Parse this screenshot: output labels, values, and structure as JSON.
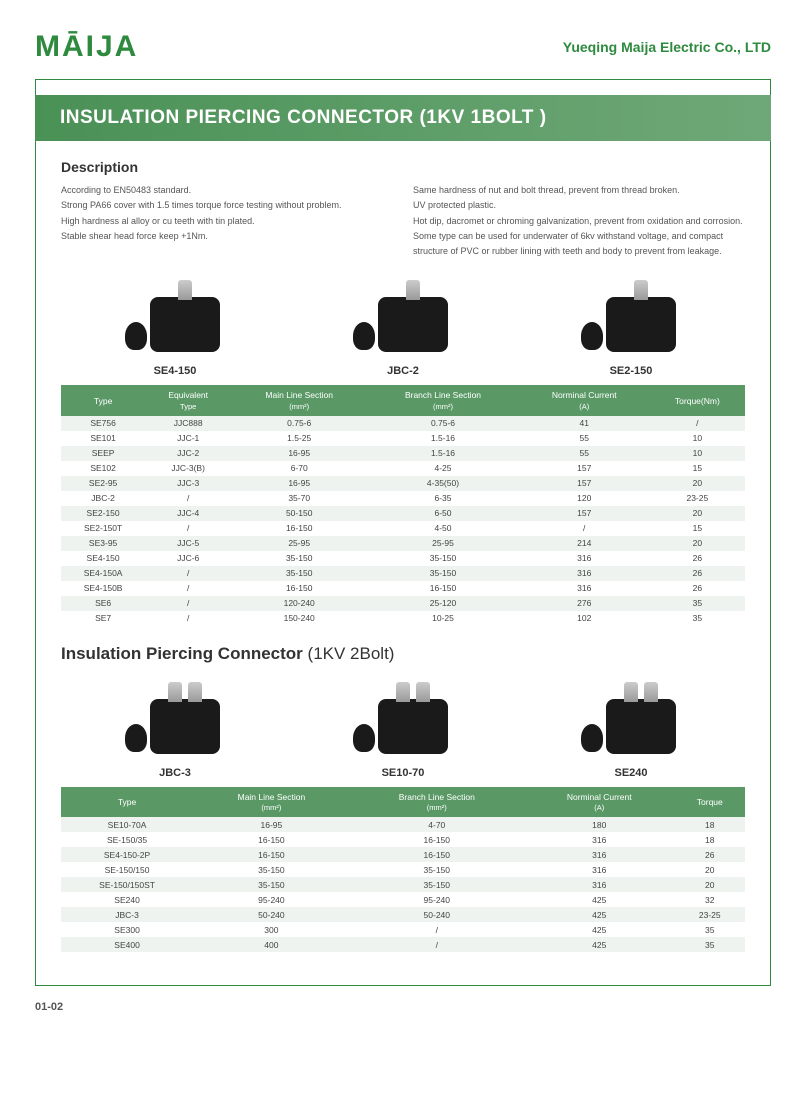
{
  "logo": "MĀIJA",
  "company": "Yueqing Maija Electric Co., LTD",
  "title1": "INSULATION PIERCING CONNECTOR (1KV 1BOLT )",
  "desc_heading": "Description",
  "desc_left": [
    "According to EN50483 standard.",
    "Strong PA66 cover with 1.5 times torque force testing without problem.",
    "High hardness al alloy or cu teeth with tin plated.",
    "Stable shear head force keep +1Nm."
  ],
  "desc_right": [
    "Same hardness of nut and bolt thread, prevent from thread broken.",
    "UV protected plastic.",
    "Hot dip, dacromet or chroming galvanization, prevent from oxidation and corrosion.",
    "Some type can be used for underwater of 6kv withstand voltage, and compact structure of PVC or rubber lining with teeth and body to prevent from leakage."
  ],
  "products1": [
    {
      "label": "SE4-150"
    },
    {
      "label": "JBC-2"
    },
    {
      "label": "SE2-150"
    }
  ],
  "table1_headers": [
    {
      "main": "Type",
      "sub": ""
    },
    {
      "main": "Equivalent",
      "sub": "Type"
    },
    {
      "main": "Main Line Section",
      "sub": "(mm²)"
    },
    {
      "main": "Branch Line Section",
      "sub": "(mm²)"
    },
    {
      "main": "Norminal Current",
      "sub": "(A)"
    },
    {
      "main": "Torque(Nm)",
      "sub": ""
    }
  ],
  "table1_rows": [
    [
      "SE756",
      "JJC888",
      "0.75-6",
      "0.75-6",
      "41",
      "/"
    ],
    [
      "SE101",
      "JJC-1",
      "1.5-25",
      "1.5-16",
      "55",
      "10"
    ],
    [
      "SEEP",
      "JJC-2",
      "16-95",
      "1.5-16",
      "55",
      "10"
    ],
    [
      "SE102",
      "JJC-3(B)",
      "6-70",
      "4-25",
      "157",
      "15"
    ],
    [
      "SE2-95",
      "JJC-3",
      "16-95",
      "4-35(50)",
      "157",
      "20"
    ],
    [
      "JBC-2",
      "/",
      "35-70",
      "6-35",
      "120",
      "23-25"
    ],
    [
      "SE2-150",
      "JJC-4",
      "50-150",
      "6-50",
      "157",
      "20"
    ],
    [
      "SE2-150T",
      "/",
      "16-150",
      "4-50",
      "/",
      "15"
    ],
    [
      "SE3-95",
      "JJC-5",
      "25-95",
      "25-95",
      "214",
      "20"
    ],
    [
      "SE4-150",
      "JJC-6",
      "35-150",
      "35-150",
      "316",
      "26"
    ],
    [
      "SE4-150A",
      "/",
      "35-150",
      "35-150",
      "316",
      "26"
    ],
    [
      "SE4-150B",
      "/",
      "16-150",
      "16-150",
      "316",
      "26"
    ],
    [
      "SE6",
      "/",
      "120-240",
      "25-120",
      "276",
      "35"
    ],
    [
      "SE7",
      "/",
      "150-240",
      "10-25",
      "102",
      "35"
    ]
  ],
  "title2_a": "Insulation Piercing Connector ",
  "title2_b": "(1KV 2Bolt)",
  "products2": [
    {
      "label": "JBC-3"
    },
    {
      "label": "SE10-70"
    },
    {
      "label": "SE240"
    }
  ],
  "table2_headers": [
    {
      "main": "Type",
      "sub": ""
    },
    {
      "main": "Main Line Section",
      "sub": "(mm²)"
    },
    {
      "main": "Branch Line Section",
      "sub": "(mm²)"
    },
    {
      "main": "Norminal Current",
      "sub": "(A)"
    },
    {
      "main": "Torque",
      "sub": ""
    }
  ],
  "table2_rows": [
    [
      "SE10-70A",
      "16-95",
      "4-70",
      "180",
      "18"
    ],
    [
      "SE-150/35",
      "16-150",
      "16-150",
      "316",
      "18"
    ],
    [
      "SE4-150-2P",
      "16-150",
      "16-150",
      "316",
      "26"
    ],
    [
      "SE-150/150",
      "35-150",
      "35-150",
      "316",
      "20"
    ],
    [
      "SE-150/150ST",
      "35-150",
      "35-150",
      "316",
      "20"
    ],
    [
      "SE240",
      "95-240",
      "95-240",
      "425",
      "32"
    ],
    [
      "JBC-3",
      "50-240",
      "50-240",
      "425",
      "23-25"
    ],
    [
      "SE300",
      "300",
      "/",
      "425",
      "35"
    ],
    [
      "SE400",
      "400",
      "/",
      "425",
      "35"
    ]
  ],
  "page_num": "01-02"
}
